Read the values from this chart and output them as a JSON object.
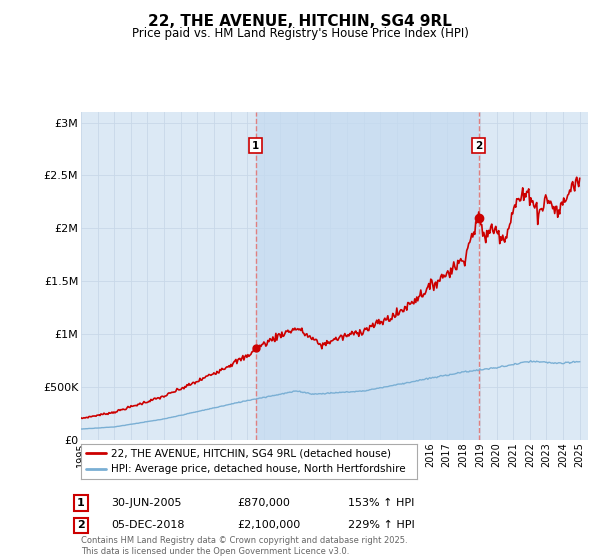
{
  "title": "22, THE AVENUE, HITCHIN, SG4 9RL",
  "subtitle": "Price paid vs. HM Land Registry's House Price Index (HPI)",
  "background_color": "#ffffff",
  "plot_background_color": "#dce9f5",
  "grid_color": "#c8d8e8",
  "y_ticks": [
    0,
    500000,
    1000000,
    1500000,
    2000000,
    2500000,
    3000000
  ],
  "y_tick_labels": [
    "£0",
    "£500K",
    "£1M",
    "£1.5M",
    "£2M",
    "£2.5M",
    "£3M"
  ],
  "x_start_year": 1995,
  "x_end_year": 2025,
  "marker1_date": 2005.5,
  "marker1_price": 870000,
  "marker2_date": 2018.92,
  "marker2_price": 2100000,
  "legend1_label": "22, THE AVENUE, HITCHIN, SG4 9RL (detached house)",
  "legend2_label": "HPI: Average price, detached house, North Hertfordshire",
  "note1_num": "1",
  "note1_date": "30-JUN-2005",
  "note1_price": "£870,000",
  "note1_hpi": "153% ↑ HPI",
  "note2_num": "2",
  "note2_date": "05-DEC-2018",
  "note2_price": "£2,100,000",
  "note2_hpi": "229% ↑ HPI",
  "copyright_text": "Contains HM Land Registry data © Crown copyright and database right 2025.\nThis data is licensed under the Open Government Licence v3.0.",
  "line1_color": "#cc0000",
  "line2_color": "#7aafd4",
  "marker_line_color": "#e08080",
  "marker_dot_color": "#cc0000"
}
